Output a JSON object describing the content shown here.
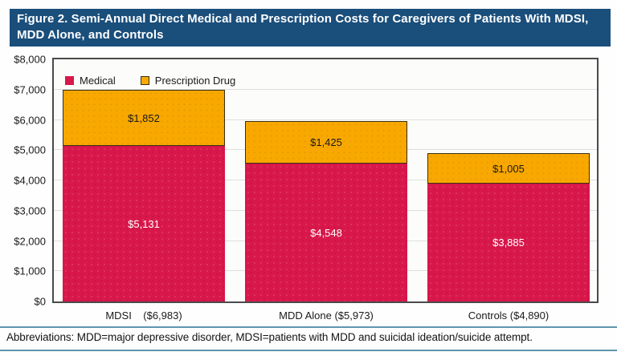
{
  "title": "Figure 2. Semi-Annual Direct Medical and Prescription Costs for Caregivers of Patients With MDSI, MDD Alone, and Controls",
  "footnote": "Abbreviations: MDD=major depressive disorder, MDSI=patients with MDD and suicidal ideation/suicide attempt.",
  "colors": {
    "banner": "#1a4e7b",
    "medical": "#d8174a",
    "prescription": "#f8a800",
    "rule": "#5e96ae",
    "plot_border": "#4a4a4a"
  },
  "chart_data": {
    "type": "bar",
    "stacked": true,
    "title": "Semi-Annual Direct Medical and Prescription Costs for Caregivers",
    "categories": [
      "MDSI    ($6,983)",
      "MDD Alone ($5,973)",
      "Controls ($4,890)"
    ],
    "series": [
      {
        "name": "Medical",
        "color": "#d8174a",
        "values": [
          5131,
          4548,
          3885
        ]
      },
      {
        "name": "Prescription Drug",
        "color": "#f8a800",
        "values": [
          1852,
          1425,
          1005
        ]
      }
    ],
    "value_labels": [
      [
        "$5,131",
        "$4,548",
        "$3,885"
      ],
      [
        "$1,852",
        "$1,425",
        "$1,005"
      ]
    ],
    "totals": [
      6983,
      5973,
      4890
    ],
    "xlabel": "",
    "ylabel": "",
    "ylim": [
      0,
      8000
    ],
    "ytick_step": 1000,
    "ytick_labels": [
      "$0",
      "$1,000",
      "$2,000",
      "$3,000",
      "$4,000",
      "$5,000",
      "$6,000",
      "$7,000",
      "$8,000"
    ],
    "grid": true,
    "legend_position": "inside-top-left"
  }
}
